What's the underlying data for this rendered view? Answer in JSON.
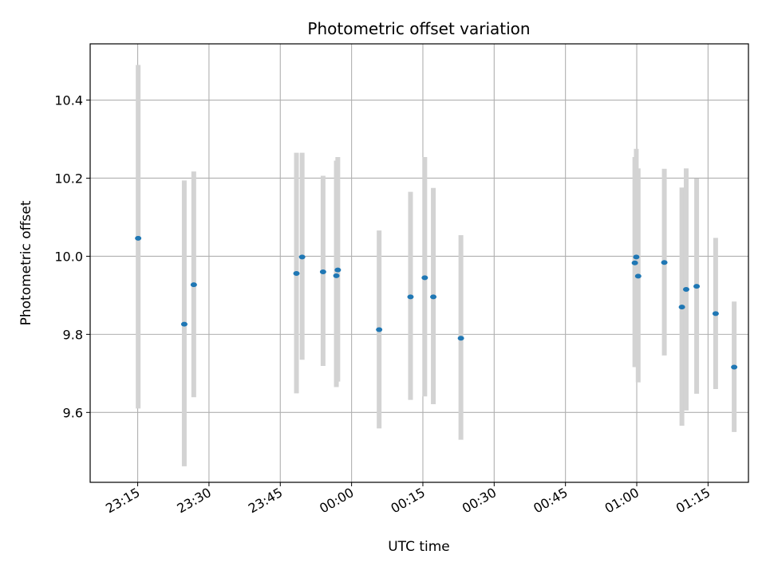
{
  "chart_data": {
    "type": "scatter",
    "title": "Photometric offset variation",
    "xlabel": "UTC time",
    "ylabel": "Photometric offset",
    "grid": true,
    "x_unit": "minutes since 23:00",
    "xlim": [
      5.0,
      143.5
    ],
    "ylim": [
      9.421,
      10.544
    ],
    "x_ticks": [
      {
        "value": 15,
        "label": "23:15"
      },
      {
        "value": 30,
        "label": "23:30"
      },
      {
        "value": 45,
        "label": "23:45"
      },
      {
        "value": 60,
        "label": "00:00"
      },
      {
        "value": 75,
        "label": "00:15"
      },
      {
        "value": 90,
        "label": "00:30"
      },
      {
        "value": 105,
        "label": "00:45"
      },
      {
        "value": 120,
        "label": "01:00"
      },
      {
        "value": 135,
        "label": "01:15"
      }
    ],
    "y_ticks": [
      {
        "value": 9.6,
        "label": "9.6"
      },
      {
        "value": 9.8,
        "label": "9.8"
      },
      {
        "value": 10.0,
        "label": "10.0"
      },
      {
        "value": 10.2,
        "label": "10.2"
      },
      {
        "value": 10.4,
        "label": "10.4"
      }
    ],
    "series": [
      {
        "name": "offset",
        "marker_color": "#1f77b4",
        "errorbar_color": "#d3d3d3",
        "points": [
          {
            "x": 15.1,
            "y": 10.046,
            "err_low": 9.61,
            "err_high": 10.49
          },
          {
            "x": 24.8,
            "y": 9.826,
            "err_low": 9.462,
            "err_high": 10.194
          },
          {
            "x": 26.8,
            "y": 9.927,
            "err_low": 9.639,
            "err_high": 10.217
          },
          {
            "x": 48.4,
            "y": 9.956,
            "err_low": 9.649,
            "err_high": 10.265
          },
          {
            "x": 49.6,
            "y": 9.998,
            "err_low": 9.735,
            "err_high": 10.265
          },
          {
            "x": 54.0,
            "y": 9.96,
            "err_low": 9.719,
            "err_high": 10.206
          },
          {
            "x": 56.8,
            "y": 9.95,
            "err_low": 9.665,
            "err_high": 10.245
          },
          {
            "x": 57.1,
            "y": 9.965,
            "err_low": 9.679,
            "err_high": 10.254
          },
          {
            "x": 65.8,
            "y": 9.812,
            "err_low": 9.559,
            "err_high": 10.066
          },
          {
            "x": 72.4,
            "y": 9.896,
            "err_low": 9.632,
            "err_high": 10.165
          },
          {
            "x": 75.4,
            "y": 9.945,
            "err_low": 9.641,
            "err_high": 10.254
          },
          {
            "x": 77.2,
            "y": 9.896,
            "err_low": 9.621,
            "err_high": 10.175
          },
          {
            "x": 83.0,
            "y": 9.79,
            "err_low": 9.53,
            "err_high": 10.054
          },
          {
            "x": 119.6,
            "y": 9.983,
            "err_low": 9.716,
            "err_high": 10.254
          },
          {
            "x": 119.9,
            "y": 9.998,
            "err_low": 9.724,
            "err_high": 10.275
          },
          {
            "x": 120.3,
            "y": 9.949,
            "err_low": 9.677,
            "err_high": 10.225
          },
          {
            "x": 125.8,
            "y": 9.984,
            "err_low": 9.746,
            "err_high": 10.224
          },
          {
            "x": 129.5,
            "y": 9.87,
            "err_low": 9.566,
            "err_high": 10.176
          },
          {
            "x": 130.4,
            "y": 9.915,
            "err_low": 9.605,
            "err_high": 10.225
          },
          {
            "x": 132.6,
            "y": 9.923,
            "err_low": 9.648,
            "err_high": 10.199
          },
          {
            "x": 136.6,
            "y": 9.853,
            "err_low": 9.66,
            "err_high": 10.047
          },
          {
            "x": 140.5,
            "y": 9.716,
            "err_low": 9.55,
            "err_high": 9.884
          }
        ]
      }
    ]
  }
}
